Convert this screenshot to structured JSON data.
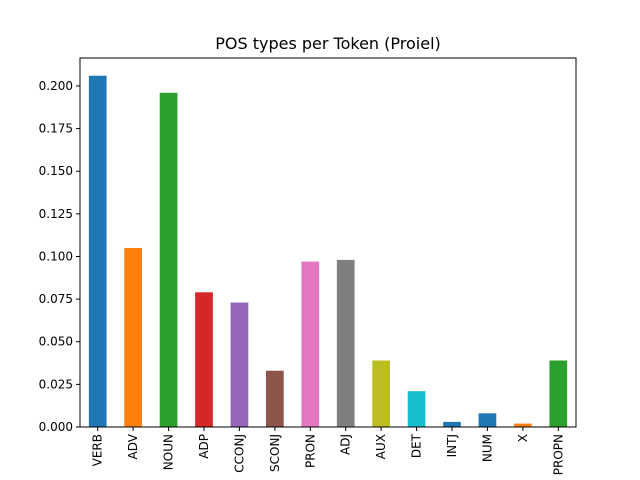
{
  "chart_data": {
    "type": "bar",
    "title": "POS types per Token (Proiel)",
    "xlabel": "",
    "ylabel": "",
    "categories": [
      "VERB",
      "ADV",
      "NOUN",
      "ADP",
      "CCONJ",
      "SCONJ",
      "PRON",
      "ADJ",
      "AUX",
      "DET",
      "INTJ",
      "NUM",
      "X",
      "PROPN"
    ],
    "values": [
      0.206,
      0.105,
      0.196,
      0.079,
      0.073,
      0.033,
      0.097,
      0.098,
      0.039,
      0.021,
      0.003,
      0.008,
      0.002,
      0.039
    ],
    "colors": [
      "#1f77b4",
      "#ff7f0e",
      "#2ca02c",
      "#d62728",
      "#9467bd",
      "#8c564b",
      "#e377c2",
      "#7f7f7f",
      "#bcbd22",
      "#17becf",
      "#1f77b4",
      "#1f77b4",
      "#ff7f0e",
      "#2ca02c"
    ],
    "ylim": [
      0,
      0.2164
    ],
    "yticks": [
      0.0,
      0.025,
      0.05,
      0.075,
      0.1,
      0.125,
      0.15,
      0.175,
      0.2
    ],
    "ytick_labels": [
      "0.000",
      "0.025",
      "0.050",
      "0.075",
      "0.100",
      "0.125",
      "0.150",
      "0.175",
      "0.200"
    ],
    "grid": false,
    "legend": "none"
  }
}
